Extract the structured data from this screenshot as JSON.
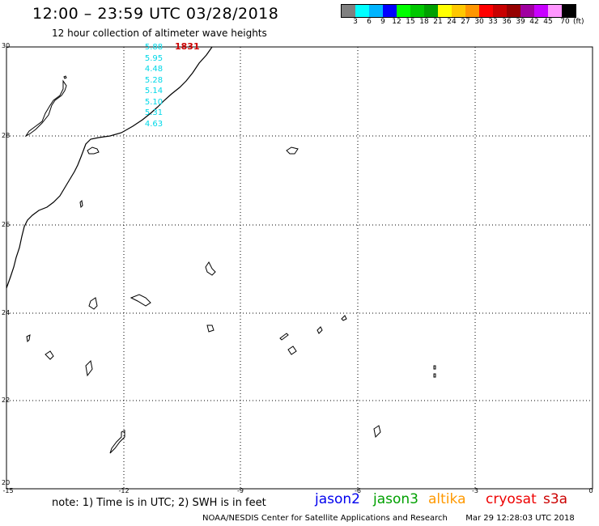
{
  "header": {
    "title": "12:00 – 23:59 UTC 03/28/2018",
    "subtitle": "12 hour collection of altimeter wave heights"
  },
  "colorbar": {
    "colors": [
      "#808080",
      "#00ffff",
      "#00b4ff",
      "#0000ff",
      "#00ff00",
      "#00c800",
      "#00a000",
      "#ffff00",
      "#ffc800",
      "#ff9600",
      "#ff0000",
      "#c80000",
      "#960000",
      "#a000a0",
      "#c800ff",
      "#ff96ff",
      "#000000"
    ],
    "labels": [
      "3",
      "6",
      "9",
      "12",
      "15",
      "18",
      "21",
      "24",
      "27",
      "30",
      "33",
      "36",
      "39",
      "42",
      "45",
      "70"
    ],
    "unit": "(ft)"
  },
  "map": {
    "lat_labels": [
      "30",
      "28",
      "26",
      "24",
      "22",
      "20"
    ],
    "lon_labels": [
      "-15",
      "-12",
      "-9",
      "-6",
      "-3",
      "0"
    ],
    "track_time": {
      "label": "1831",
      "color": "#cc0000"
    },
    "wave_heights": {
      "color": "#00d8e8",
      "values": [
        "5.88",
        "5.95",
        "4.48",
        "5.28",
        "5.14",
        "5.10",
        "5.31",
        "4.63"
      ]
    }
  },
  "footer": {
    "note": "note:  1) Time is in UTC;  2) SWH is in feet",
    "satellites": [
      {
        "name": "jason2",
        "color": "#0000ee"
      },
      {
        "name": "jason3",
        "color": "#00a000"
      },
      {
        "name": "altika",
        "color": "#ff9900"
      },
      {
        "name": "cryosat",
        "color": "#ee0000"
      },
      {
        "name": "s3a",
        "color": "#cc0000"
      }
    ],
    "credit": "NOAA/NESDIS Center for Satellite Applications and Research",
    "timestamp": "Mar 29 12:28:03 UTC 2018"
  }
}
